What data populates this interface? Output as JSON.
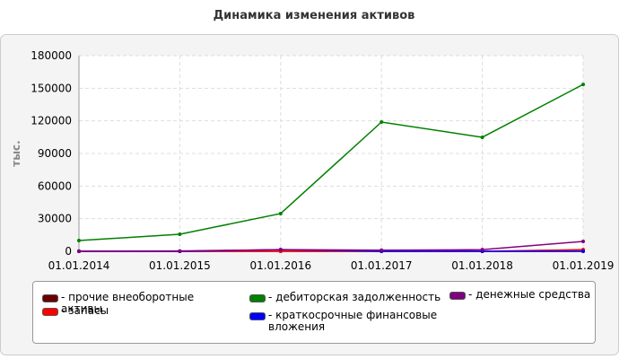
{
  "chart_data": {
    "type": "line",
    "title": "Динамика изменения активов",
    "y_label": "тыс.",
    "categories": [
      "01.01.2014",
      "01.01.2015",
      "01.01.2016",
      "01.01.2017",
      "01.01.2018",
      "01.01.2019"
    ],
    "ylim": [
      0,
      180000
    ],
    "yticks": [
      0,
      30000,
      60000,
      90000,
      120000,
      150000,
      180000
    ],
    "grid": true,
    "series": [
      {
        "name": "- прочие внеоборотные активы",
        "color": "#6b0000",
        "values": [
          0,
          0,
          0,
          0,
          0,
          0
        ]
      },
      {
        "name": "- запасы",
        "color": "#ff0000",
        "values": [
          0,
          0,
          0,
          0,
          0,
          1500
        ]
      },
      {
        "name": "- дебиторская задолженность",
        "color": "#008000",
        "values": [
          9900,
          15700,
          34700,
          118900,
          104900,
          153500
        ]
      },
      {
        "name": "- краткосрочные финансовые вложения",
        "color": "#0000ff",
        "values": [
          0,
          0,
          1500,
          0,
          0,
          0
        ]
      },
      {
        "name": "- денежные средства",
        "color": "#800080",
        "values": [
          200,
          300,
          1500,
          1000,
          1500,
          9100
        ]
      }
    ]
  }
}
